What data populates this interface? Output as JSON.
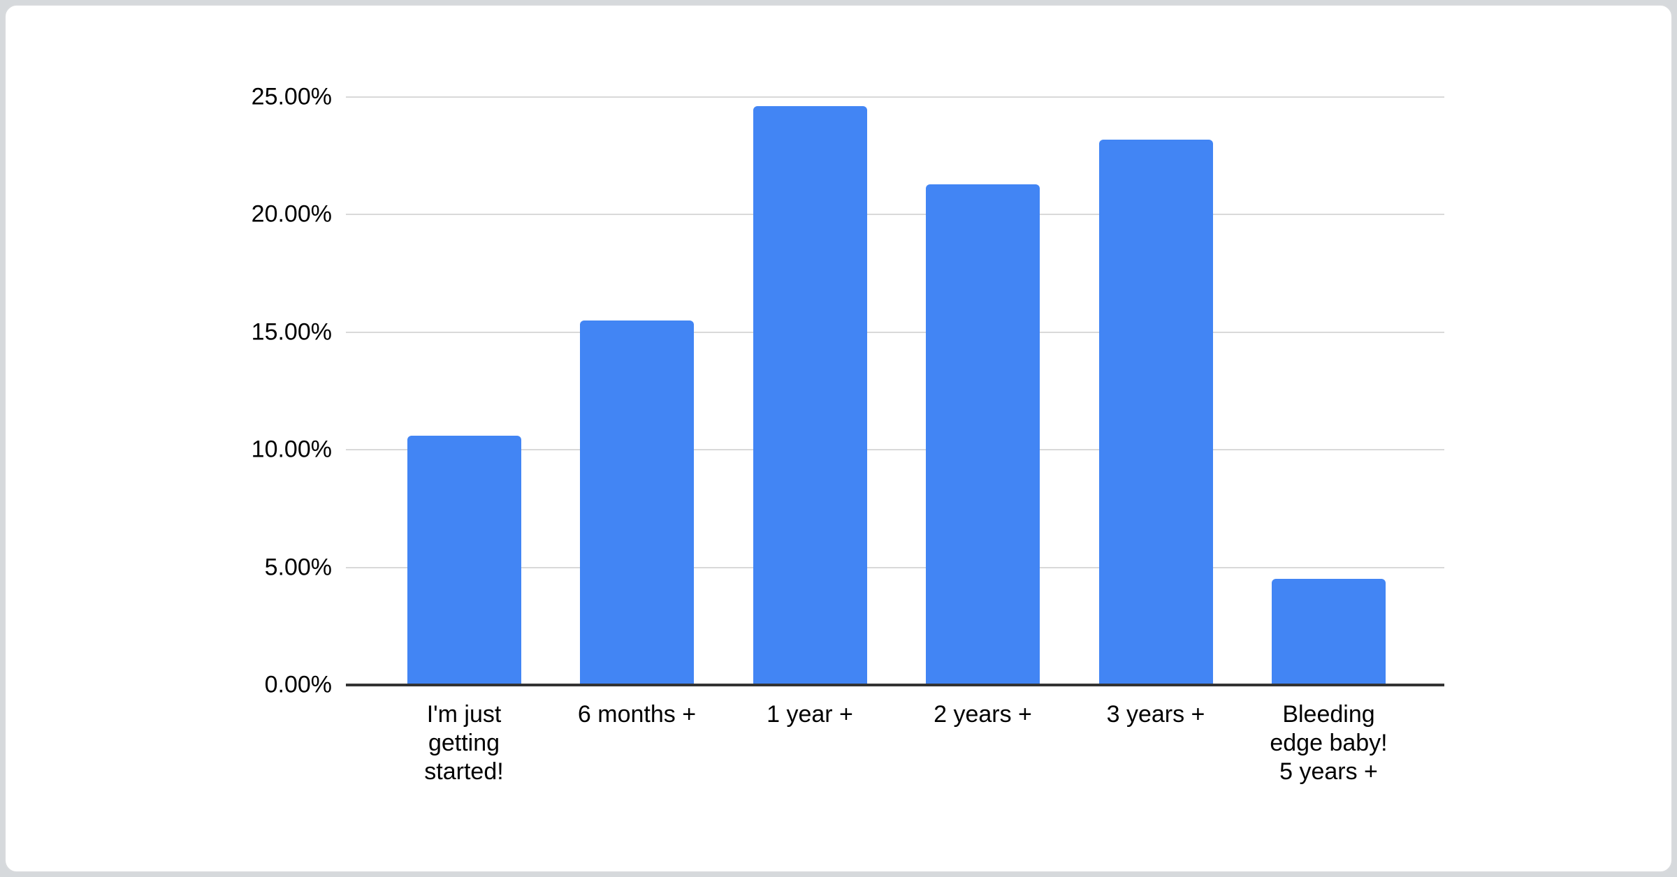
{
  "chart_data": {
    "type": "bar",
    "title": "",
    "categories": [
      "I'm just\ngetting\nstarted!",
      "6 months +",
      "1 year +",
      "2 years +",
      "3 years +",
      "Bleeding\nedge baby!\n5 years +"
    ],
    "values": [
      10.6,
      15.5,
      24.6,
      21.3,
      23.2,
      4.5
    ],
    "value_unit": "%",
    "y_ticks": [
      "0.00%",
      "5.00%",
      "10.00%",
      "15.00%",
      "20.00%",
      "25.00%"
    ],
    "y_tick_values": [
      0,
      5,
      10,
      15,
      20,
      25
    ],
    "ylim": [
      0,
      25
    ],
    "xlabel": "",
    "ylabel": "",
    "grid": true,
    "legend": "none",
    "colors": {
      "bar": "#4285f4",
      "gridline": "#d9d9d9",
      "axis_line": "#333333",
      "label_text": "#000000",
      "card_background": "#ffffff",
      "page_background": "#d6d9dc",
      "card_border": "#d8dadd"
    }
  }
}
